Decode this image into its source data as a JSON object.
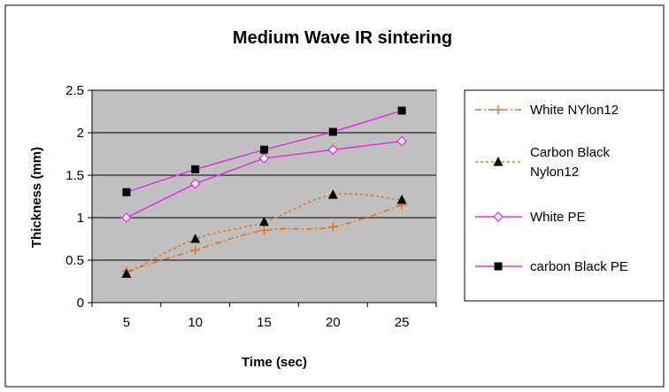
{
  "chart_data": {
    "type": "line",
    "title": "Medium Wave IR sintering",
    "xlabel": "Time (sec)",
    "ylabel": "Thickness (mm)",
    "categories": [
      "5",
      "10",
      "15",
      "20",
      "25"
    ],
    "ylim": [
      0,
      2.5
    ],
    "yticks": [
      "0",
      "0.5",
      "1",
      "1.5",
      "2",
      "2.5"
    ],
    "grid": true,
    "legend_position": "right",
    "series": [
      {
        "name": "White NYlon12",
        "values": [
          0.37,
          0.62,
          0.85,
          0.89,
          1.15
        ],
        "color": "#E8731E",
        "dash": "dash-dot",
        "marker": "plus",
        "smooth": true
      },
      {
        "name": "Carbon Black Nylon12",
        "name_lines": [
          "Carbon Black",
          "Nylon12"
        ],
        "values": [
          0.34,
          0.75,
          0.95,
          1.27,
          1.21
        ],
        "color": "#E8731E",
        "dash": "dotted",
        "marker": "triangle",
        "smooth": true
      },
      {
        "name": "White PE",
        "values": [
          1.0,
          1.4,
          1.7,
          1.8,
          1.9
        ],
        "color": "#E030E0",
        "dash": "solid",
        "marker": "diamond",
        "smooth": false
      },
      {
        "name": "carbon Black PE",
        "values": [
          1.3,
          1.57,
          1.8,
          2.01,
          2.26
        ],
        "color": "#E030E0",
        "dash": "solid",
        "marker": "square",
        "smooth": false
      }
    ],
    "plot_background": "#C0C0C0"
  }
}
